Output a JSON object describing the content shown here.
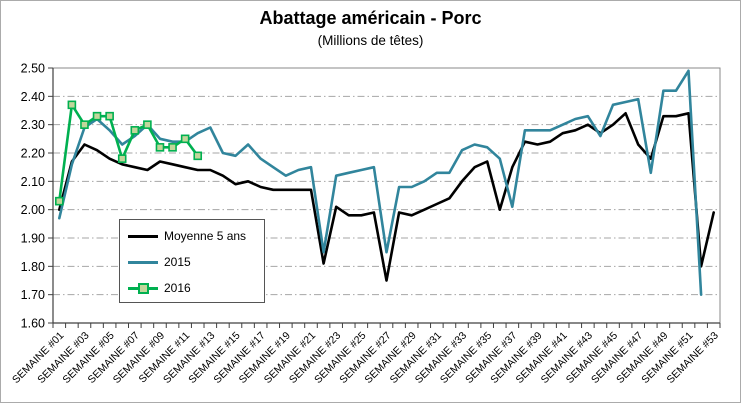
{
  "chart_data": {
    "type": "line",
    "title": "Abattage américain - Porc",
    "subtitle": "(Millions de têtes)",
    "xlabel": "",
    "ylabel": "",
    "ylim": [
      1.6,
      2.5
    ],
    "y_tick_labels": [
      "1.60",
      "1.70",
      "1.80",
      "1.90",
      "2.00",
      "2.10",
      "2.20",
      "2.30",
      "2.40",
      "2.50"
    ],
    "x_tick_labels": [
      "SEMAINE #01",
      "SEMAINE #03",
      "SEMAINE #05",
      "SEMAINE #07",
      "SEMAINE #09",
      "SEMAINE #11",
      "SEMAINE #13",
      "SEMAINE #15",
      "SEMAINE #17",
      "SEMAINE #19",
      "SEMAINE #21",
      "SEMAINE #23",
      "SEMAINE #25",
      "SEMAINE #27",
      "SEMAINE #29",
      "SEMAINE #31",
      "SEMAINE #33",
      "SEMAINE #35",
      "SEMAINE #37",
      "SEMAINE #39",
      "SEMAINE #41",
      "SEMAINE #43",
      "SEMAINE #45",
      "SEMAINE #47",
      "SEMAINE #49",
      "SEMAINE #51",
      "SEMAINE #53"
    ],
    "n_weeks": 53,
    "grid": "horizontal dash-dot",
    "legend_position": "inside-left",
    "series": [
      {
        "name": "Moyenne 5 ans",
        "color": "#000000",
        "marker": "none",
        "values": [
          2.0,
          2.17,
          2.23,
          2.21,
          2.18,
          2.16,
          2.15,
          2.14,
          2.17,
          2.16,
          2.15,
          2.14,
          2.14,
          2.12,
          2.09,
          2.1,
          2.08,
          2.07,
          2.07,
          2.07,
          2.07,
          1.81,
          2.01,
          1.98,
          1.98,
          1.99,
          1.75,
          1.99,
          1.98,
          2.0,
          2.02,
          2.04,
          2.1,
          2.15,
          2.17,
          2.0,
          2.15,
          2.24,
          2.23,
          2.24,
          2.27,
          2.28,
          2.3,
          2.27,
          2.3,
          2.34,
          2.23,
          2.18,
          2.33,
          2.33,
          2.34,
          1.8,
          1.99
        ]
      },
      {
        "name": "2015",
        "color": "#31859C",
        "marker": "none",
        "values": [
          1.97,
          2.16,
          2.29,
          2.32,
          2.28,
          2.23,
          2.26,
          2.3,
          2.25,
          2.24,
          2.24,
          2.27,
          2.29,
          2.2,
          2.19,
          2.23,
          2.18,
          2.15,
          2.12,
          2.14,
          2.15,
          1.85,
          2.12,
          2.13,
          2.14,
          2.15,
          1.85,
          2.08,
          2.08,
          2.1,
          2.13,
          2.13,
          2.21,
          2.23,
          2.22,
          2.18,
          2.01,
          2.28,
          2.28,
          2.28,
          2.3,
          2.32,
          2.33,
          2.26,
          2.37,
          2.38,
          2.39,
          2.13,
          2.42,
          2.42,
          2.49,
          1.7,
          null
        ]
      },
      {
        "name": "2016",
        "color": "#00B050",
        "marker": "square",
        "marker_fill": "#C2D69B",
        "values": [
          2.03,
          2.37,
          2.3,
          2.33,
          2.33,
          2.18,
          2.28,
          2.3,
          2.22,
          2.22,
          2.25,
          2.19,
          null,
          null,
          null,
          null,
          null,
          null,
          null,
          null,
          null,
          null,
          null,
          null,
          null,
          null,
          null,
          null,
          null,
          null,
          null,
          null,
          null,
          null,
          null,
          null,
          null,
          null,
          null,
          null,
          null,
          null,
          null,
          null,
          null,
          null,
          null,
          null,
          null,
          null,
          null,
          null,
          null
        ]
      }
    ]
  }
}
